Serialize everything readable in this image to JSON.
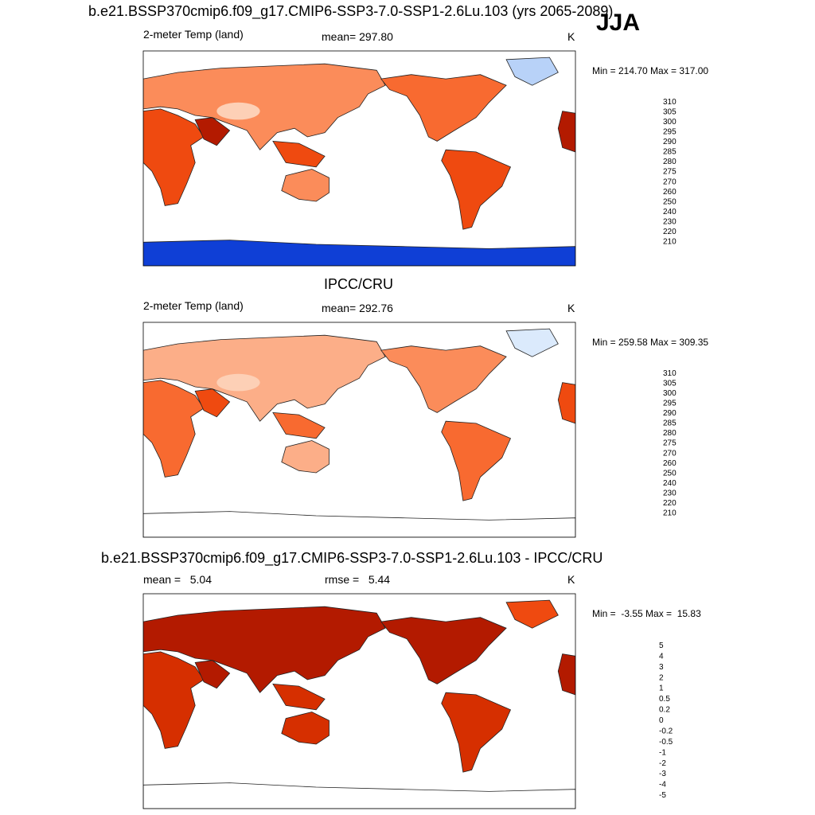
{
  "season": "JJA",
  "panels": [
    {
      "title": "b.e21.BSSP370cmip6.f09_g17.CMIP6-SSP3-7.0-SSP1-2.6Lu.103 (yrs 2065-2089)",
      "left_label": "2-meter Temp (land)",
      "center_label": "mean= 297.80",
      "units": "K",
      "minmax": "Min = 214.70 Max = 317.00"
    },
    {
      "title": "IPCC/CRU",
      "left_label": "2-meter Temp (land)",
      "center_label": "mean= 292.76",
      "units": "K",
      "minmax": "Min = 259.58 Max = 309.35"
    },
    {
      "title": "b.e21.BSSP370cmip6.f09_g17.CMIP6-SSP3-7.0-SSP1-2.6Lu.103 - IPCC/CRU",
      "left_label": "mean =   5.04",
      "center_label": "rmse =   5.44",
      "units": "K",
      "minmax": "Min =  -3.55 Max =  15.83"
    }
  ],
  "chart_data": [
    {
      "type": "heatmap",
      "title": "b.e21.BSSP370cmip6.f09_g17.CMIP6-SSP3-7.0-SSP1-2.6Lu.103 (yrs 2065-2089)",
      "variable": "2-meter Temp (land)",
      "units": "K",
      "mean": 297.8,
      "min": 214.7,
      "max": 317.0,
      "colorbar_labels": [
        "310",
        "305",
        "300",
        "295",
        "290",
        "285",
        "280",
        "275",
        "270",
        "260",
        "250",
        "240",
        "230",
        "220",
        "210"
      ],
      "colorbar_colors": [
        "#8b0000",
        "#b31a00",
        "#d62f00",
        "#ef4a10",
        "#f86a30",
        "#fb8c5a",
        "#fcae88",
        "#fdd0b6",
        "#feecdf",
        "#dbeafc",
        "#b8d2f8",
        "#8cb4f3",
        "#5a8ef0",
        "#2e65f0",
        "#0f3fd6",
        "#0a23a8",
        "#050a78"
      ],
      "colorbar_position": "right"
    },
    {
      "type": "heatmap",
      "title": "IPCC/CRU",
      "variable": "2-meter Temp (land)",
      "units": "K",
      "mean": 292.76,
      "min": 259.58,
      "max": 309.35,
      "colorbar_labels": [
        "310",
        "305",
        "300",
        "295",
        "290",
        "285",
        "280",
        "275",
        "270",
        "260",
        "250",
        "240",
        "230",
        "220",
        "210"
      ],
      "colorbar_colors": [
        "#8b0000",
        "#b31a00",
        "#d62f00",
        "#ef4a10",
        "#f86a30",
        "#fb8c5a",
        "#fcae88",
        "#fdd0b6",
        "#feecdf",
        "#dbeafc",
        "#b8d2f8",
        "#8cb4f3",
        "#5a8ef0",
        "#2e65f0",
        "#0f3fd6",
        "#0a23a8",
        "#050a78"
      ],
      "colorbar_position": "right"
    },
    {
      "type": "heatmap",
      "title": "b.e21.BSSP370cmip6.f09_g17.CMIP6-SSP3-7.0-SSP1-2.6Lu.103 - IPCC/CRU",
      "units": "K",
      "mean": 5.04,
      "rmse": 5.44,
      "min": -3.55,
      "max": 15.83,
      "colorbar_labels": [
        "5",
        "4",
        "3",
        "2",
        "1",
        "0.5",
        "0.2",
        "0",
        "-0.2",
        "-0.5",
        "-1",
        "-2",
        "-3",
        "-4",
        "-5"
      ],
      "colorbar_colors": [
        "#8b0000",
        "#b31a00",
        "#d62f00",
        "#ef4a10",
        "#f86a30",
        "#fb8c5a",
        "#fcae88",
        "#fdd0b6",
        "#feecdf",
        "#dbeafc",
        "#b8d2f8",
        "#8cb4f3",
        "#5a8ef0",
        "#2e65f0",
        "#0f3fd6",
        "#050a78"
      ],
      "colorbar_position": "right"
    }
  ]
}
